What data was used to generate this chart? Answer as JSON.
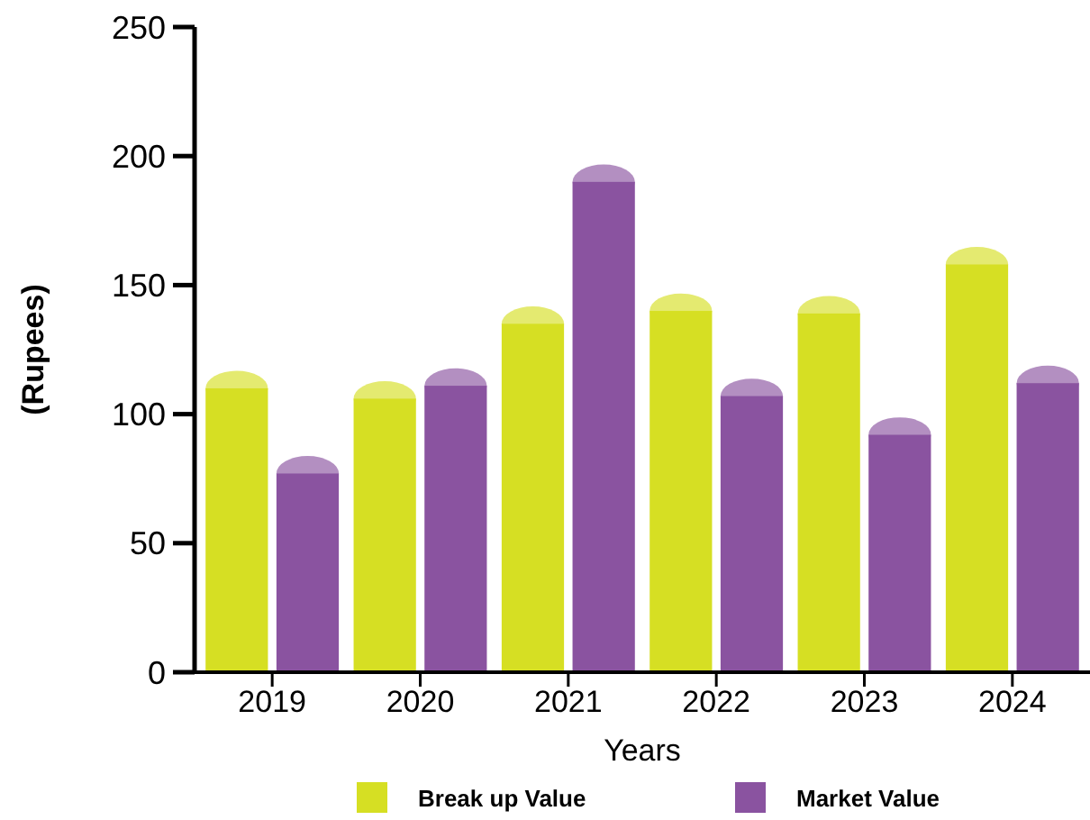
{
  "chart_data": {
    "type": "bar",
    "xlabel": "Years",
    "ylabel": "(Rupees)",
    "categories": [
      "2019",
      "2020",
      "2021",
      "2022",
      "2023",
      "2024"
    ],
    "series": [
      {
        "name": "Break up Value",
        "color": "#d6df23",
        "values": [
          110,
          106,
          135,
          140,
          139,
          158
        ]
      },
      {
        "name": "Market Value",
        "color": "#8a53a0",
        "values": [
          77,
          111,
          190,
          107,
          92,
          112
        ]
      }
    ],
    "ylim": [
      0,
      250
    ],
    "yticks": [
      0,
      50,
      100,
      150,
      200,
      250
    ],
    "grid": false,
    "legend": "bottom"
  }
}
